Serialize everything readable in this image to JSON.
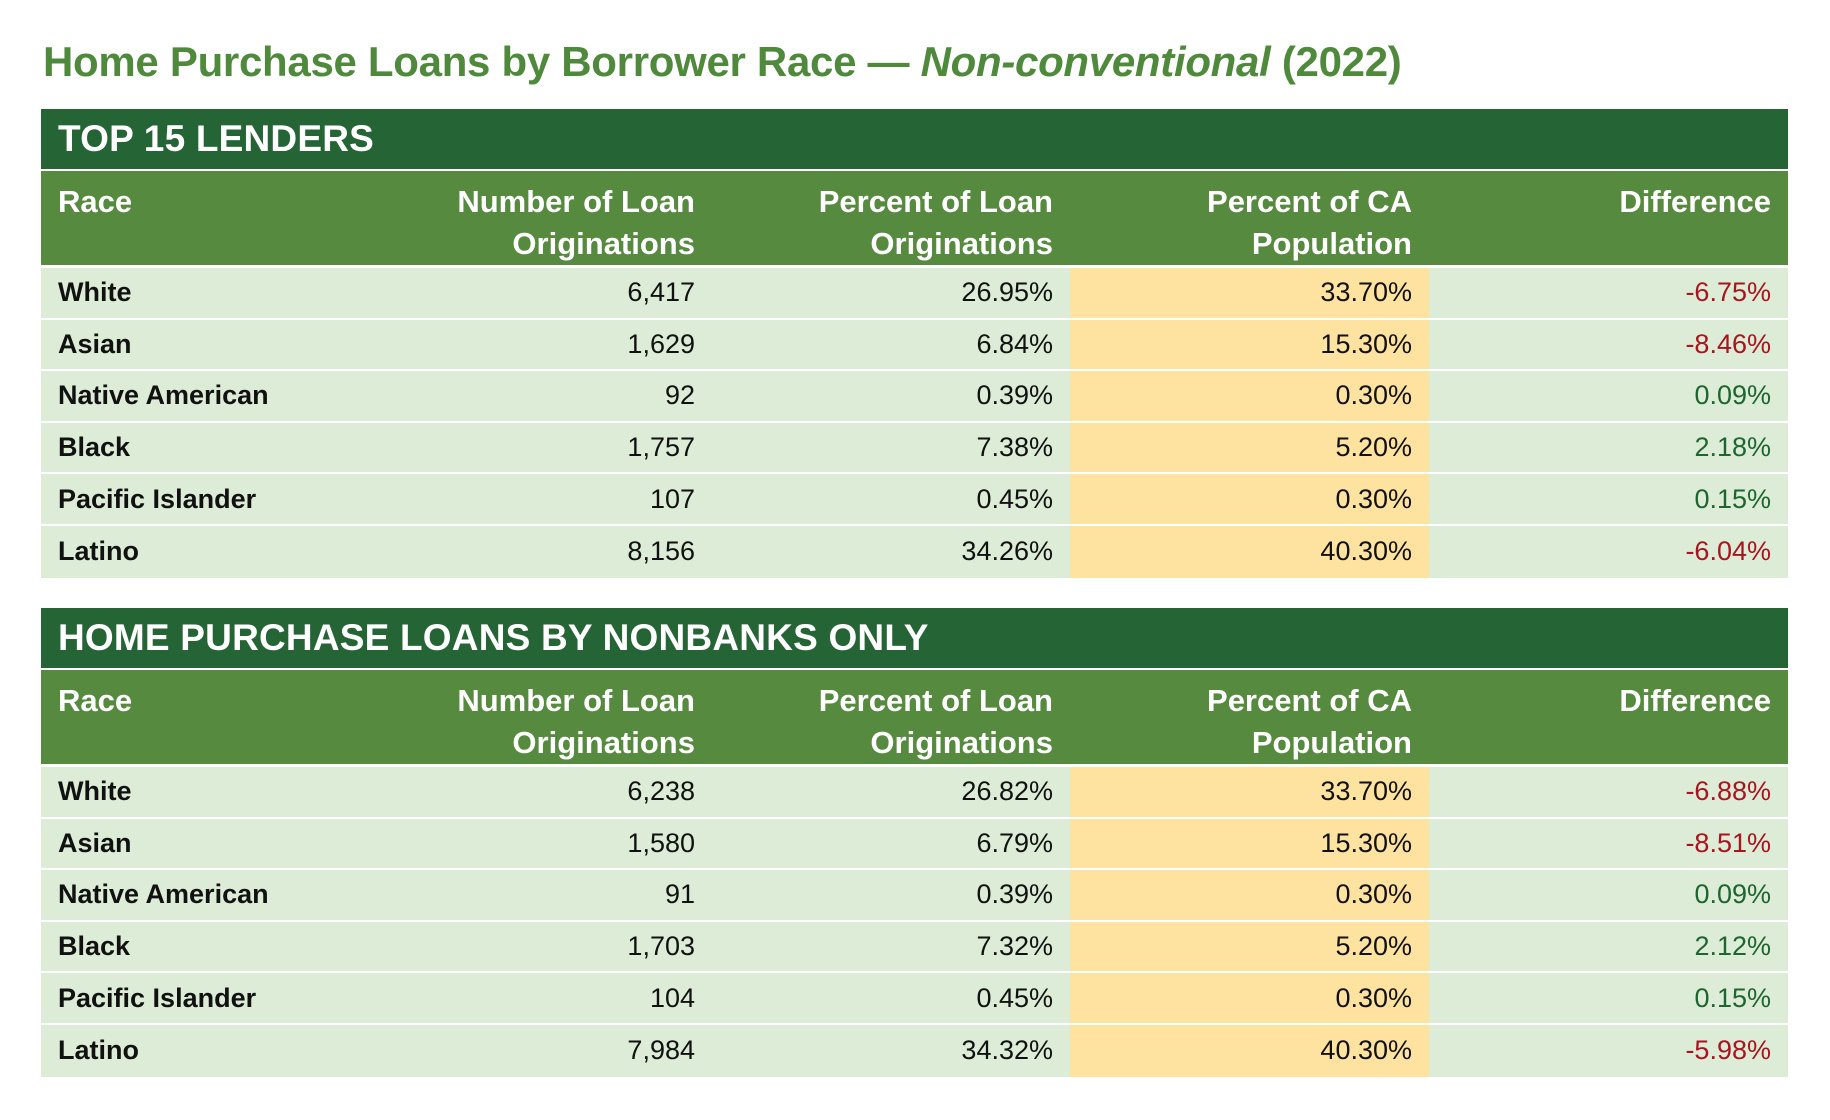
{
  "title": {
    "prefix": "Home Purchase Loans by Borrower Race — ",
    "emphasis": "Non-conventional",
    "suffix": " (2022)"
  },
  "colors": {
    "title": "#4f8a3c",
    "section_header": "#256535",
    "column_header": "#568a3f",
    "row_background": "#dcecd6",
    "population_highlight": "#fee29f",
    "negative": "#a8141f",
    "positive": "#1e6530"
  },
  "columns": {
    "race": "Race",
    "number": "Number of Loan Originations",
    "percent": "Percent of Loan Originations",
    "population": "Percent of CA Population",
    "difference": "Difference"
  },
  "sections": [
    {
      "title": "TOP 15 LENDERS",
      "rows": [
        {
          "race": "White",
          "number": "6,417",
          "percent": "26.95%",
          "population": "33.70%",
          "difference": "-6.75%",
          "sign": "neg"
        },
        {
          "race": "Asian",
          "number": "1,629",
          "percent": "6.84%",
          "population": "15.30%",
          "difference": "-8.46%",
          "sign": "neg"
        },
        {
          "race": "Native American",
          "number": "92",
          "percent": "0.39%",
          "population": "0.30%",
          "difference": "0.09%",
          "sign": "pos"
        },
        {
          "race": "Black",
          "number": "1,757",
          "percent": "7.38%",
          "population": "5.20%",
          "difference": "2.18%",
          "sign": "pos"
        },
        {
          "race": "Pacific Islander",
          "number": "107",
          "percent": "0.45%",
          "population": "0.30%",
          "difference": "0.15%",
          "sign": "pos"
        },
        {
          "race": "Latino",
          "number": "8,156",
          "percent": "34.26%",
          "population": "40.30%",
          "difference": "-6.04%",
          "sign": "neg"
        }
      ]
    },
    {
      "title": "HOME PURCHASE LOANS BY NONBANKS ONLY",
      "rows": [
        {
          "race": "White",
          "number": "6,238",
          "percent": "26.82%",
          "population": "33.70%",
          "difference": "-6.88%",
          "sign": "neg"
        },
        {
          "race": "Asian",
          "number": "1,580",
          "percent": "6.79%",
          "population": "15.30%",
          "difference": "-8.51%",
          "sign": "neg"
        },
        {
          "race": "Native American",
          "number": "91",
          "percent": "0.39%",
          "population": "0.30%",
          "difference": "0.09%",
          "sign": "pos"
        },
        {
          "race": "Black",
          "number": "1,703",
          "percent": "7.32%",
          "population": "5.20%",
          "difference": "2.12%",
          "sign": "pos"
        },
        {
          "race": "Pacific Islander",
          "number": "104",
          "percent": "0.45%",
          "population": "0.30%",
          "difference": "0.15%",
          "sign": "pos"
        },
        {
          "race": "Latino",
          "number": "7,984",
          "percent": "34.32%",
          "population": "40.30%",
          "difference": "-5.98%",
          "sign": "neg"
        }
      ]
    }
  ]
}
